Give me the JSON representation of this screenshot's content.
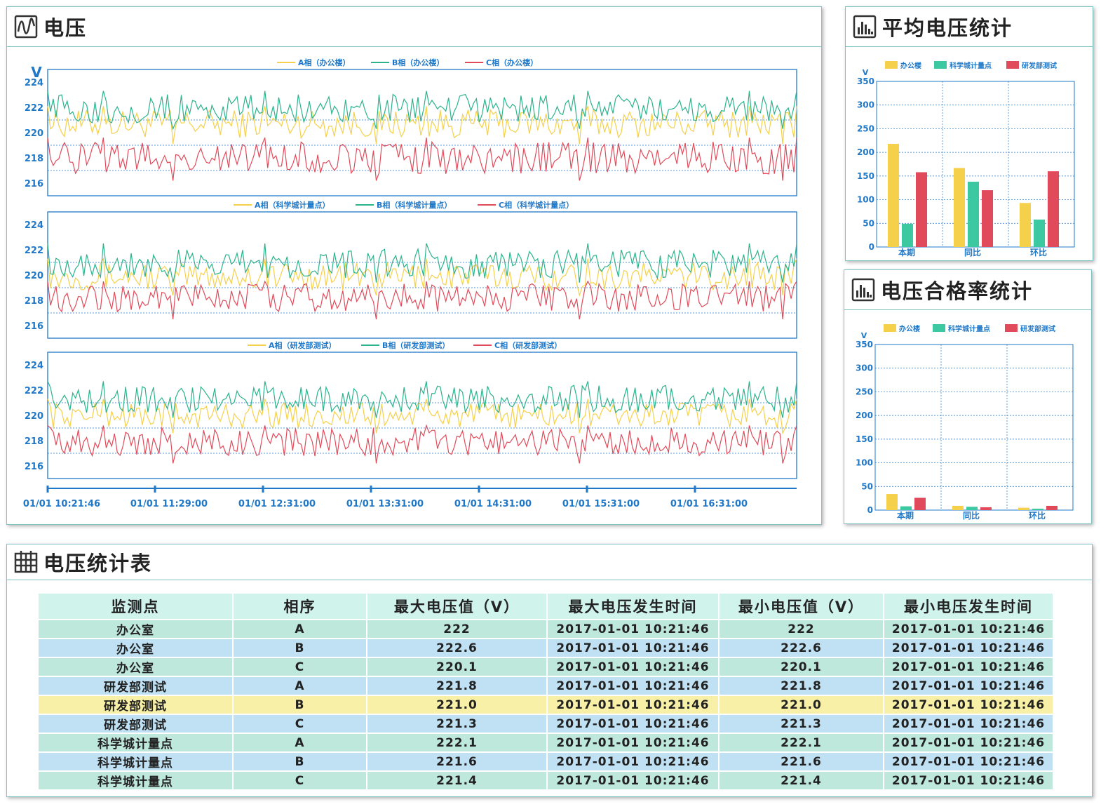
{
  "voltage_panel": {
    "title": "电压",
    "icon": "waveform-icon",
    "unit": "V"
  },
  "avg_panel": {
    "title": "平均电压统计",
    "icon": "bar-chart-icon"
  },
  "pass_panel": {
    "title": "电压合格率统计",
    "icon": "bar-chart-icon"
  },
  "table_panel": {
    "title": "电压统计表",
    "icon": "table-icon",
    "headers": [
      "监测点",
      "相序",
      "最大电压值（V）",
      "最大电压发生时间",
      "最小电压值（V）",
      "最小电压发生时间"
    ],
    "rows": [
      {
        "point": "办公室",
        "phase": "A",
        "max": "222",
        "max_time": "2017-01-01 10:21:46",
        "min": "222",
        "min_time": "2017-01-01 10:21:46",
        "style": "green"
      },
      {
        "point": "办公室",
        "phase": "B",
        "max": "222.6",
        "max_time": "2017-01-01 10:21:46",
        "min": "222.6",
        "min_time": "2017-01-01 10:21:46",
        "style": "blue"
      },
      {
        "point": "办公室",
        "phase": "C",
        "max": "220.1",
        "max_time": "2017-01-01 10:21:46",
        "min": "220.1",
        "min_time": "2017-01-01 10:21:46",
        "style": "green"
      },
      {
        "point": "研发部测试",
        "phase": "A",
        "max": "221.8",
        "max_time": "2017-01-01 10:21:46",
        "min": "221.8",
        "min_time": "2017-01-01 10:21:46",
        "style": "blue"
      },
      {
        "point": "研发部测试",
        "phase": "B",
        "max": "221.0",
        "max_time": "2017-01-01 10:21:46",
        "min": "221.0",
        "min_time": "2017-01-01 10:21:46",
        "style": "yellow"
      },
      {
        "point": "研发部测试",
        "phase": "C",
        "max": "221.3",
        "max_time": "2017-01-01 10:21:46",
        "min": "221.3",
        "min_time": "2017-01-01 10:21:46",
        "style": "blue"
      },
      {
        "point": "科学城计量点",
        "phase": "A",
        "max": "222.1",
        "max_time": "2017-01-01 10:21:46",
        "min": "222.1",
        "min_time": "2017-01-01 10:21:46",
        "style": "green"
      },
      {
        "point": "科学城计量点",
        "phase": "B",
        "max": "221.6",
        "max_time": "2017-01-01 10:21:46",
        "min": "221.6",
        "min_time": "2017-01-01 10:21:46",
        "style": "blue"
      },
      {
        "point": "科学城计量点",
        "phase": "C",
        "max": "221.4",
        "max_time": "2017-01-01 10:21:46",
        "min": "221.4",
        "min_time": "2017-01-01 10:21:46",
        "style": "green"
      }
    ]
  },
  "colors": {
    "phase_a": "#f5d04a",
    "phase_b": "#2bb38c",
    "phase_c": "#e04a5a",
    "axis": "#1f78c8",
    "bar_office": "#f5d04a",
    "bar_science": "#3cc8a0",
    "bar_rnd": "#e04a5a"
  },
  "chart_data": [
    {
      "type": "line",
      "ylabel": "V",
      "yticks": [
        216,
        218,
        220,
        222,
        224
      ],
      "ylim": [
        215,
        225
      ],
      "x_tick_labels": [
        "01/01 10:21:46",
        "01/01 11:29:00",
        "01/01 12:31:00",
        "01/01 13:31:00",
        "01/01 14:31:00",
        "01/01 15:31:00",
        "01/01 16:31:00"
      ],
      "legend_position": "top-center",
      "grid": true,
      "series": [
        {
          "name": "A相（办公楼）",
          "mean": 220.7,
          "range": [
            219.1,
            222.1
          ]
        },
        {
          "name": "B相（办公楼）",
          "mean": 221.9,
          "range": [
            220.3,
            223.3
          ]
        },
        {
          "name": "C相（办公楼）",
          "mean": 218.0,
          "range": [
            216.2,
            219.6
          ]
        }
      ]
    },
    {
      "type": "line",
      "yticks": [
        216,
        218,
        220,
        222,
        224
      ],
      "ylim": [
        215,
        225
      ],
      "legend_position": "top-center",
      "grid": true,
      "series": [
        {
          "name": "A相（科学城计量点）",
          "mean": 219.9,
          "range": [
            218.4,
            221.3
          ]
        },
        {
          "name": "B相（科学城计量点）",
          "mean": 220.9,
          "range": [
            219.4,
            222.5
          ]
        },
        {
          "name": "C相（科学城计量点）",
          "mean": 218.2,
          "range": [
            216.5,
            219.5
          ]
        }
      ]
    },
    {
      "type": "line",
      "yticks": [
        216,
        218,
        220,
        222,
        224
      ],
      "ylim": [
        215,
        225
      ],
      "legend_position": "top-center",
      "grid": true,
      "series": [
        {
          "name": "A相（研发部测试）",
          "mean": 220.0,
          "range": [
            218.6,
            221.3
          ]
        },
        {
          "name": "B相（研发部测试）",
          "mean": 221.3,
          "range": [
            219.8,
            222.7
          ]
        },
        {
          "name": "C相（研发部测试）",
          "mean": 217.9,
          "range": [
            216.2,
            219.2
          ]
        }
      ]
    },
    {
      "type": "bar",
      "ylabel": "V",
      "categories": [
        "本期",
        "同比",
        "环比"
      ],
      "ylim": [
        0,
        350
      ],
      "yticks": [
        0,
        50,
        100,
        150,
        200,
        250,
        300,
        350
      ],
      "legend_position": "top-center",
      "series": [
        {
          "name": "办公楼",
          "values": [
            218,
            167,
            93
          ]
        },
        {
          "name": "科学城计量点",
          "values": [
            49,
            138,
            58
          ]
        },
        {
          "name": "研发部测试",
          "values": [
            158,
            120,
            160
          ]
        }
      ]
    },
    {
      "type": "bar",
      "ylabel": "V",
      "categories": [
        "本期",
        "同比",
        "环比"
      ],
      "ylim": [
        0,
        350
      ],
      "yticks": [
        0,
        50,
        100,
        150,
        200,
        250,
        300,
        350
      ],
      "legend_position": "top-center",
      "series": [
        {
          "name": "办公楼",
          "values": [
            34,
            9,
            5
          ]
        },
        {
          "name": "科学城计量点",
          "values": [
            8,
            7,
            3
          ]
        },
        {
          "name": "研发部测试",
          "values": [
            26,
            6,
            9
          ]
        }
      ]
    }
  ]
}
